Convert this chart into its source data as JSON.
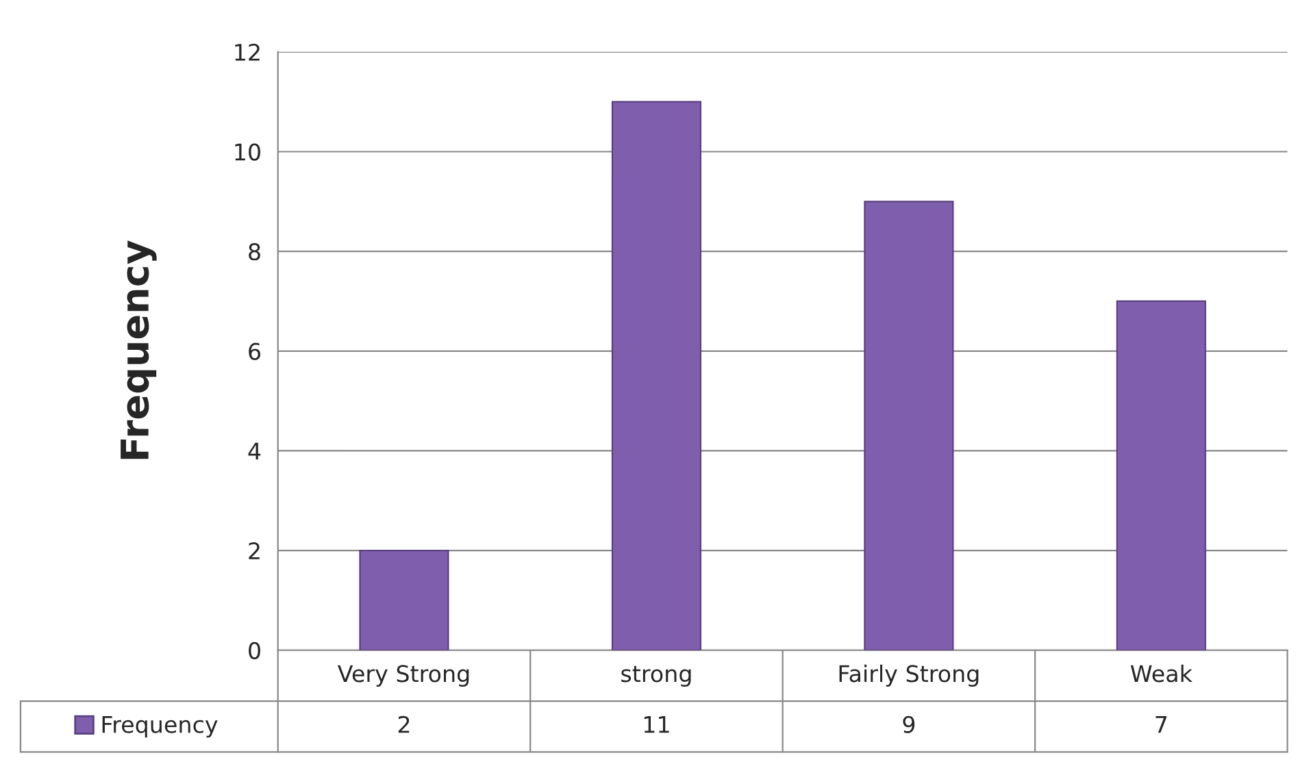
{
  "chart_data": {
    "type": "bar",
    "ylabel": "Frequency",
    "categories": [
      "Very Strong",
      "strong",
      "Fairly Strong",
      "Weak"
    ],
    "series": [
      {
        "name": "Frequency",
        "color": "#7f5fad",
        "values": [
          2,
          11,
          9,
          7
        ]
      }
    ],
    "ylim": [
      0,
      12
    ],
    "yticks": [
      0,
      2,
      4,
      6,
      8,
      10,
      12
    ],
    "grid": "y",
    "legend": "bottom",
    "data_labels": true
  }
}
